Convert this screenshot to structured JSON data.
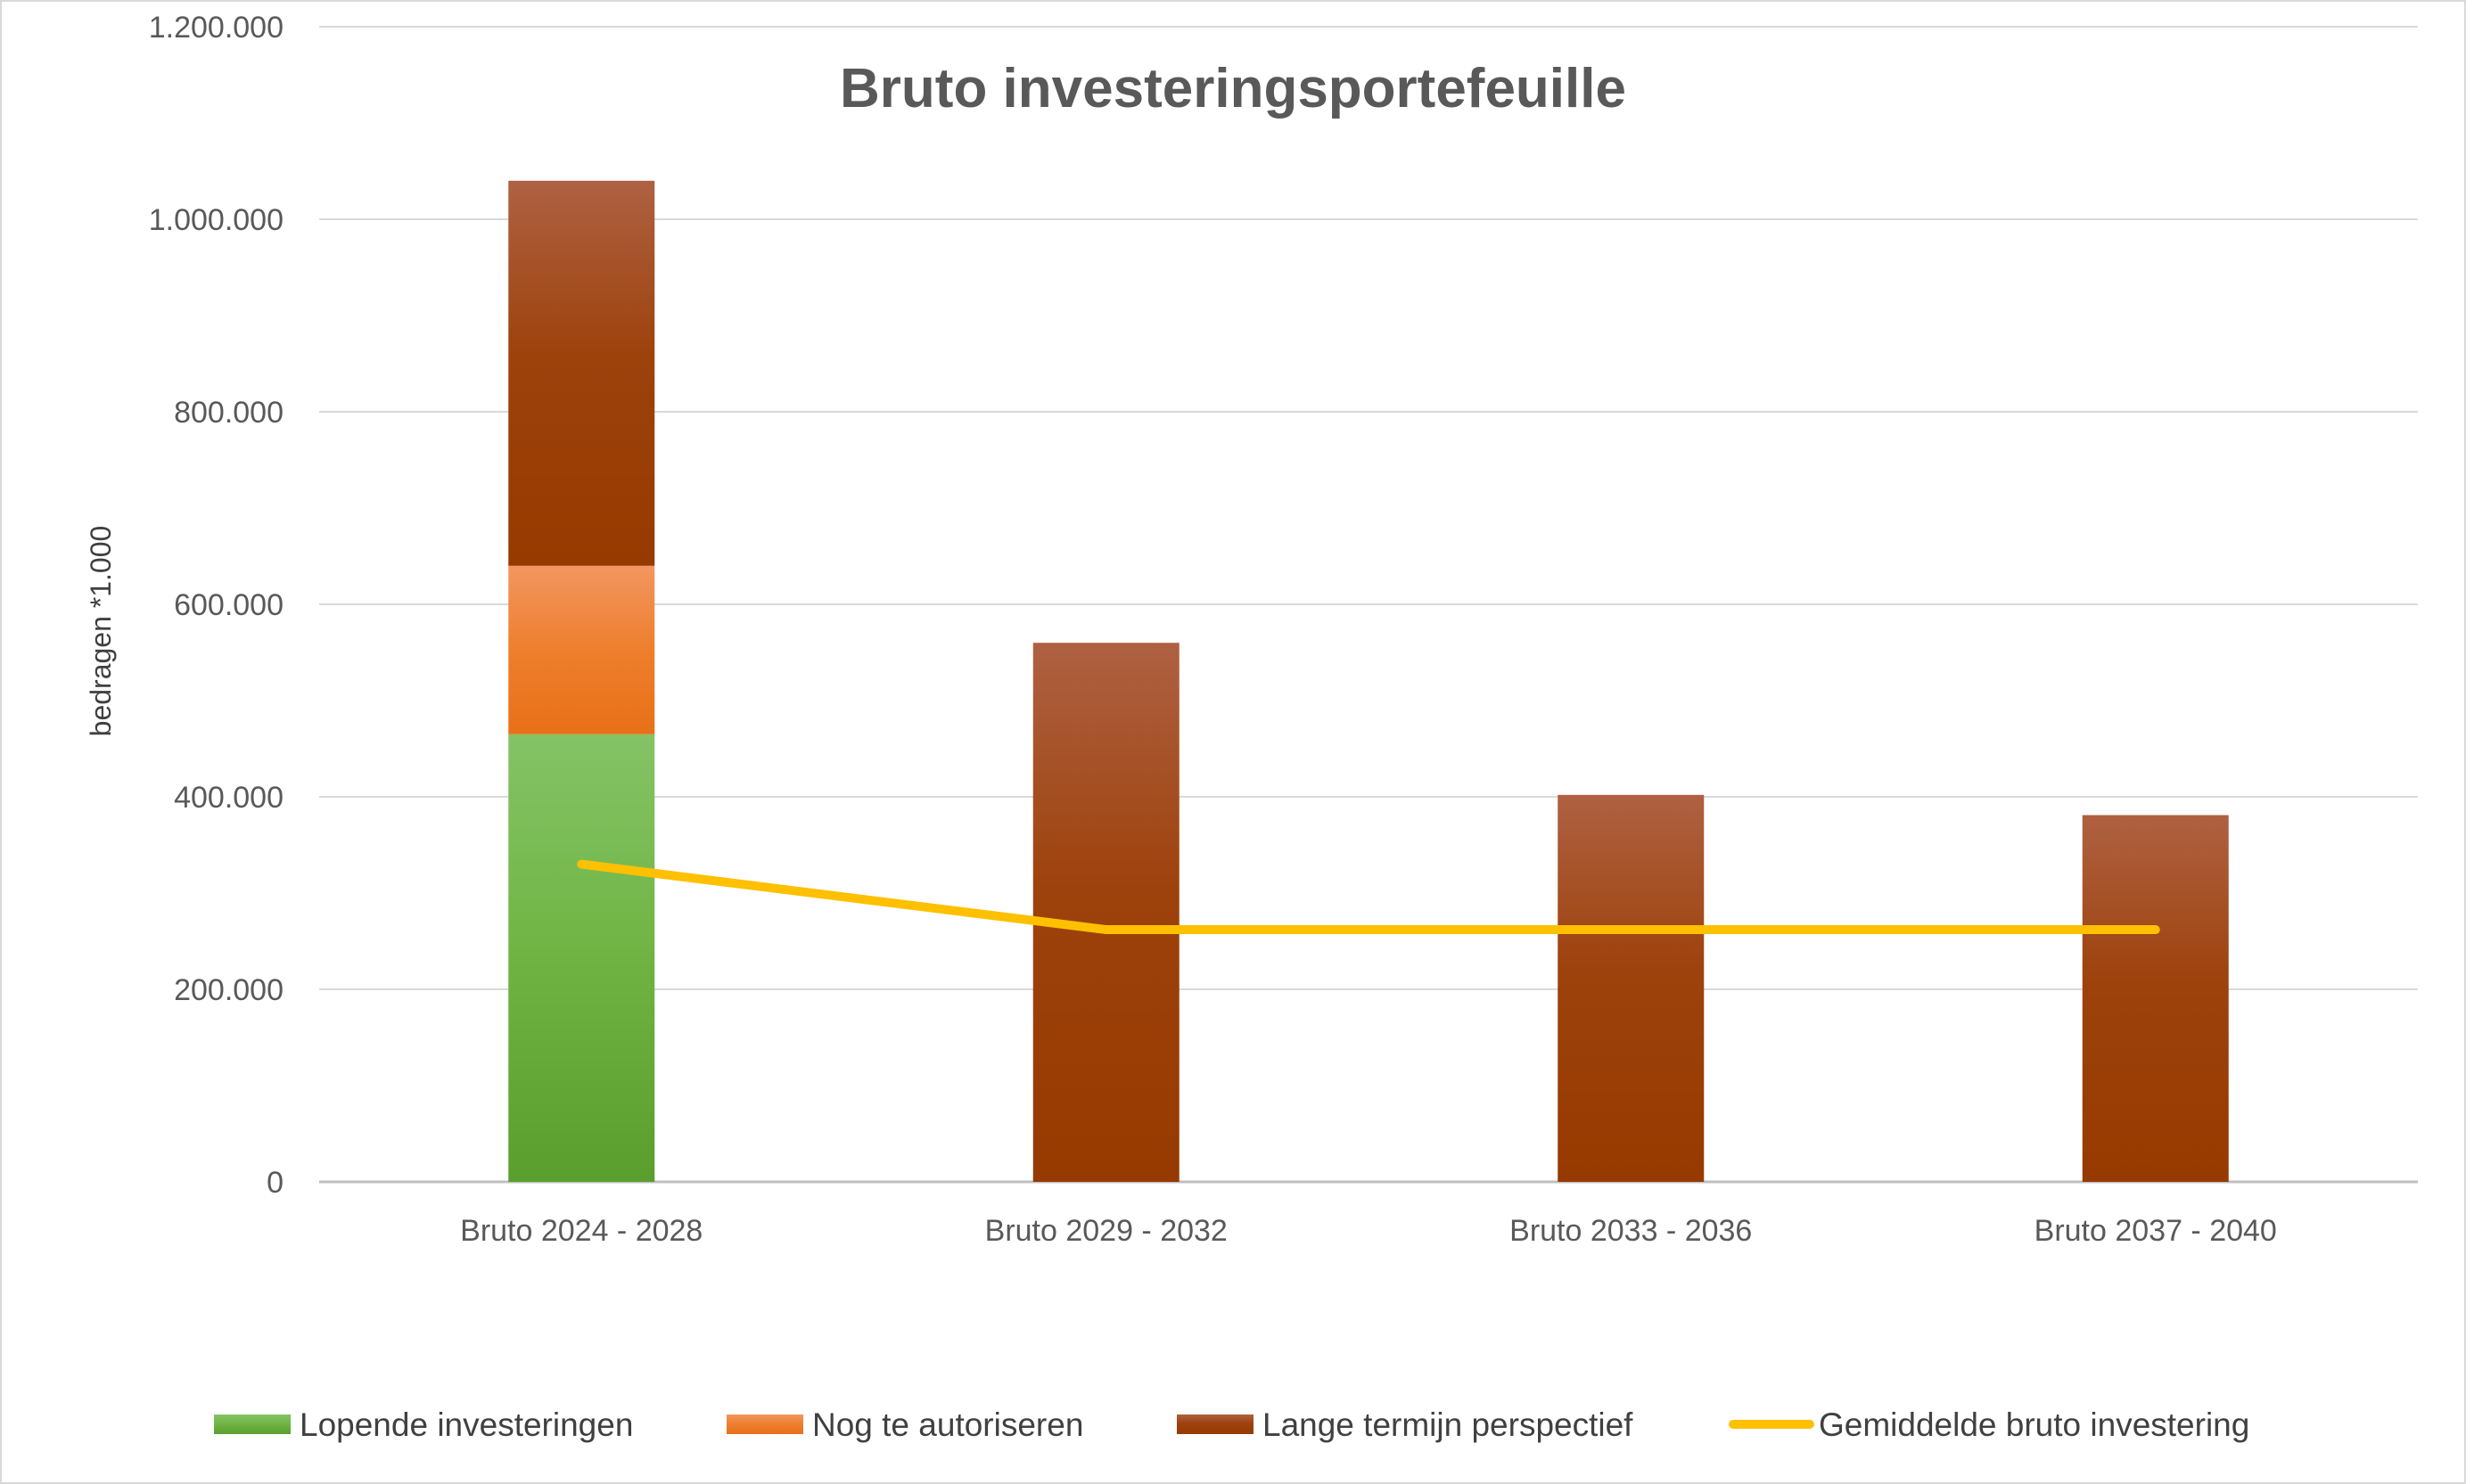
{
  "chart_data": {
    "type": "bar",
    "title": "Bruto investeringsportefeuille",
    "xlabel": "",
    "ylabel": "bedragen *1.000",
    "ylim": [
      0,
      1200000
    ],
    "yticks": [
      0,
      200000,
      400000,
      600000,
      800000,
      1000000,
      1200000
    ],
    "ytick_labels": [
      "0",
      "200.000",
      "400.000",
      "600.000",
      "800.000",
      "1.000.000",
      "1.200.000"
    ],
    "grid": true,
    "legend_position": "bottom",
    "stacked": true,
    "categories": [
      "Bruto 2024 - 2028",
      "Bruto 2029 - 2032",
      "Bruto 2033 - 2036",
      "Bruto 2037 - 2040"
    ],
    "series": [
      {
        "name": "Lopende investeringen",
        "type": "bar",
        "color": "#70AD47",
        "values": [
          465000,
          0,
          0,
          0
        ]
      },
      {
        "name": "Nog te autoriseren",
        "type": "bar",
        "color": "#ED7D31",
        "values": [
          175000,
          0,
          0,
          0
        ]
      },
      {
        "name": "Lange termijn perspectief",
        "type": "bar",
        "color": "#A0410B",
        "values": [
          400000,
          560000,
          402000,
          381000
        ]
      },
      {
        "name": "Gemiddelde bruto investering",
        "type": "line",
        "color": "#FFC000",
        "values": [
          330000,
          262000,
          262000,
          262000
        ]
      }
    ]
  }
}
